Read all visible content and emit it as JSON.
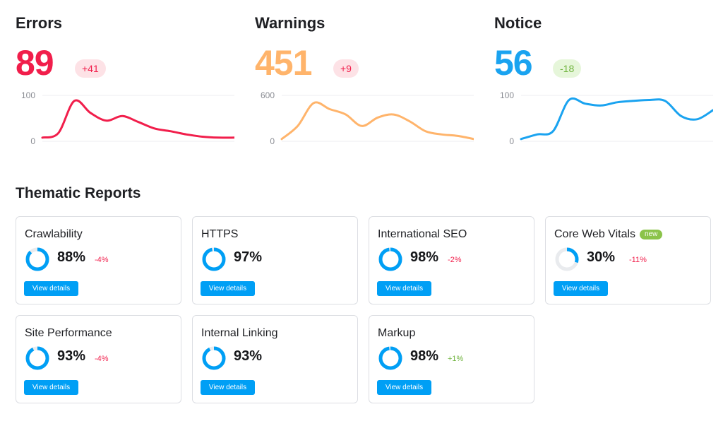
{
  "metrics": [
    {
      "title": "Errors",
      "value": "89",
      "badge": "+41",
      "color": "#f11e4b",
      "badge_bg": "#fde2e6",
      "badge_color": "#f11e4b",
      "yticks": [
        "100",
        "0"
      ],
      "chart_data": {
        "type": "line",
        "ylim": [
          0,
          100
        ],
        "x": [
          0,
          1,
          2,
          3,
          4,
          5,
          6,
          7,
          8,
          9,
          10,
          11,
          12
        ],
        "values": [
          8,
          18,
          88,
          62,
          45,
          55,
          42,
          28,
          22,
          15,
          10,
          8,
          8
        ]
      }
    },
    {
      "title": "Warnings",
      "value": "451",
      "badge": "+9",
      "color": "#ffb46b",
      "badge_bg": "#fde2e6",
      "badge_color": "#f11e4b",
      "yticks": [
        "600",
        "0"
      ],
      "chart_data": {
        "type": "line",
        "ylim": [
          0,
          600
        ],
        "x": [
          0,
          1,
          2,
          3,
          4,
          5,
          6,
          7,
          8,
          9,
          10,
          11,
          12
        ],
        "values": [
          30,
          200,
          500,
          420,
          350,
          200,
          310,
          350,
          260,
          130,
          90,
          70,
          30
        ]
      }
    },
    {
      "title": "Notice",
      "value": "56",
      "badge": "-18",
      "color": "#1aa3f0",
      "badge_bg": "#e6f6da",
      "badge_color": "#6fb33d",
      "yticks": [
        "100",
        "0"
      ],
      "chart_data": {
        "type": "line",
        "ylim": [
          0,
          100
        ],
        "x": [
          0,
          1,
          2,
          3,
          4,
          5,
          6,
          7,
          8,
          9,
          10,
          11,
          12
        ],
        "values": [
          5,
          15,
          22,
          90,
          82,
          78,
          85,
          88,
          90,
          88,
          55,
          48,
          68
        ]
      }
    }
  ],
  "section": {
    "title": "Thematic Reports"
  },
  "cards": [
    {
      "title": "Crawlability",
      "pct": "88%",
      "percent": 88,
      "delta": "-4%",
      "delta_color": "#f11e4b",
      "button": "View details",
      "new": ""
    },
    {
      "title": "HTTPS",
      "pct": "97%",
      "percent": 97,
      "delta": "",
      "delta_color": "#f11e4b",
      "button": "View details",
      "new": ""
    },
    {
      "title": "International SEO",
      "pct": "98%",
      "percent": 98,
      "delta": "-2%",
      "delta_color": "#f11e4b",
      "button": "View details",
      "new": ""
    },
    {
      "title": "Core Web Vitals",
      "pct": "30%",
      "percent": 30,
      "delta": "-11%",
      "delta_color": "#f11e4b",
      "button": "View details",
      "new": "new"
    },
    {
      "title": "Site Performance",
      "pct": "93%",
      "percent": 93,
      "delta": "-4%",
      "delta_color": "#f11e4b",
      "button": "View details",
      "new": ""
    },
    {
      "title": "Internal Linking",
      "pct": "93%",
      "percent": 93,
      "delta": "",
      "delta_color": "#f11e4b",
      "button": "View details",
      "new": ""
    },
    {
      "title": "Markup",
      "pct": "98%",
      "percent": 98,
      "delta": "+1%",
      "delta_color": "#6fb33d",
      "button": "View details",
      "new": ""
    }
  ],
  "ring_track_color": "#e9ebee",
  "ring_fill_color": "#009ff5"
}
